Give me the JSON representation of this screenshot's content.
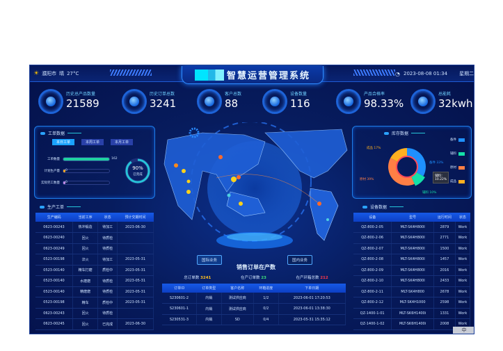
{
  "header": {
    "city": "濮阳市",
    "weather": "晴",
    "temp": "27°C",
    "title": "智慧运营管理系统",
    "datetime": "2023-08-08 01:34",
    "weekday": "星期二"
  },
  "kpis": [
    {
      "label": "历史总产品数量",
      "value": "21589"
    },
    {
      "label": "历史订单总数",
      "value": "3241"
    },
    {
      "label": "客户总数",
      "value": "88"
    },
    {
      "label": "设备数量",
      "value": "116"
    },
    {
      "label": "产品合格率",
      "value": "98.33%"
    },
    {
      "label": "总能耗",
      "value": "32kwh"
    }
  ],
  "work_orders": {
    "title": "工单数据",
    "tabs": [
      "本日工单",
      "本周工单",
      "本月工单"
    ],
    "bars": [
      {
        "label": "工单数量",
        "value": "162",
        "pct": 100,
        "color": "#1fd1a0"
      },
      {
        "label": "计划生产量",
        "value": "0",
        "pct": 4,
        "color": "#f5a623"
      },
      {
        "label": "实际完工数量",
        "value": "0",
        "pct": 4,
        "color": "#c48ee8"
      }
    ],
    "ring_value": "90%",
    "ring_label": "已完成",
    "ring_pct": 90
  },
  "production": {
    "title": "生产工单",
    "headers": [
      "生产编码",
      "当前工序",
      "状态",
      "预计交期时间"
    ],
    "rows": [
      [
        "0623-00243",
        "热冲锻造",
        "待加工",
        "2023-06-30"
      ],
      [
        "0623-00240",
        "回火",
        "待质检",
        ""
      ],
      [
        "0623-00249",
        "回火",
        "待质检",
        ""
      ],
      [
        "0523-00198",
        "淬火",
        "待加工",
        "2023-05-31"
      ],
      [
        "0523-00140",
        "精车打磨",
        "质检中",
        "2023-05-31"
      ],
      [
        "0523-00140",
        "水磨磨",
        "待质检",
        "2023-05-31"
      ],
      [
        "0523-00140",
        "精磨磨",
        "待质检",
        "2023-05-31"
      ],
      [
        "0523-00198",
        "精车",
        "质检中",
        "2023-05-31"
      ],
      [
        "0623-00243",
        "回火",
        "待质检",
        ""
      ],
      [
        "0623-00245",
        "回火",
        "已完成",
        "2023-06-30"
      ]
    ]
  },
  "inventory": {
    "title": "库存数据",
    "legend": [
      "备件",
      "辅料",
      "原材",
      "成品"
    ],
    "slices": [
      {
        "name": "备件",
        "pct": 33,
        "color": "#1e90ff"
      },
      {
        "name": "辅料",
        "pct": 10,
        "color": "#14e0a8"
      },
      {
        "name": "原材",
        "pct": 39,
        "color": "#ff7f45"
      },
      {
        "name": "成品",
        "pct": 17,
        "color": "#ffb020"
      }
    ],
    "tooltip": {
      "name": "辅料：",
      "value": "10.22%"
    },
    "labels": [
      "成品 17%",
      "备件 33%",
      "原材 39%",
      "辅料 10%"
    ]
  },
  "equipment": {
    "title": "设备数据",
    "headers": [
      "设备",
      "型号",
      "运行时间",
      "状态"
    ],
    "rows": [
      [
        "QZ-800-2-05",
        "MLT-SK4H800I",
        "2879",
        "Work"
      ],
      [
        "QZ-800-2-06",
        "MLT-SK4H800I",
        "2771",
        "Work"
      ],
      [
        "QZ-800-2-07",
        "MLT-SK4H800I",
        "1500",
        "Work"
      ],
      [
        "QZ-800-2-08",
        "MLT-SK4H800I",
        "1457",
        "Work"
      ],
      [
        "QZ-800-2-09",
        "MLT-SK4H800I",
        "2016",
        "Work"
      ],
      [
        "QZ-800-2-10",
        "MLT-SK4H800I",
        "2433",
        "Work"
      ],
      [
        "QZ-800-2-11",
        "MLT-SK4H800",
        "2678",
        "Work"
      ],
      [
        "QZ-800-2-12",
        "MLT-SK4H1000",
        "2598",
        "Work"
      ],
      [
        "QZ-1400-1-01",
        "MLT-SK6H1400i",
        "1331",
        "Work"
      ],
      [
        "QZ-1400-1-02",
        "MLT-SK6H1400i",
        "2008",
        "Work"
      ]
    ]
  },
  "sales": {
    "btn_intl": "国际业务",
    "btn_domestic": "国内业务",
    "title": "销售订单在产数",
    "stats": [
      {
        "label": "总订单数",
        "value": "3241",
        "color": "#ffc020"
      },
      {
        "label": "在产订单数",
        "value": "23",
        "color": "#3ee07a"
      },
      {
        "label": "在产环箱总数",
        "value": "212",
        "color": "#ff3a4a"
      }
    ],
    "headers": [
      "订单ID",
      "订单类型",
      "客户名称",
      "环箱进度",
      "下单日期"
    ],
    "rows": [
      [
        "S230601-2",
        "内销",
        "测试供应商",
        "1/2",
        "2023-06-01 17:20:53"
      ],
      [
        "S230601-1",
        "内销",
        "测试供应商",
        "0/2",
        "2023-06-01 13:38:30"
      ],
      [
        "S230531-3",
        "内销",
        "SD",
        "0/4",
        "2023-05-31 15:35:12"
      ]
    ]
  },
  "footer_badge": "中"
}
